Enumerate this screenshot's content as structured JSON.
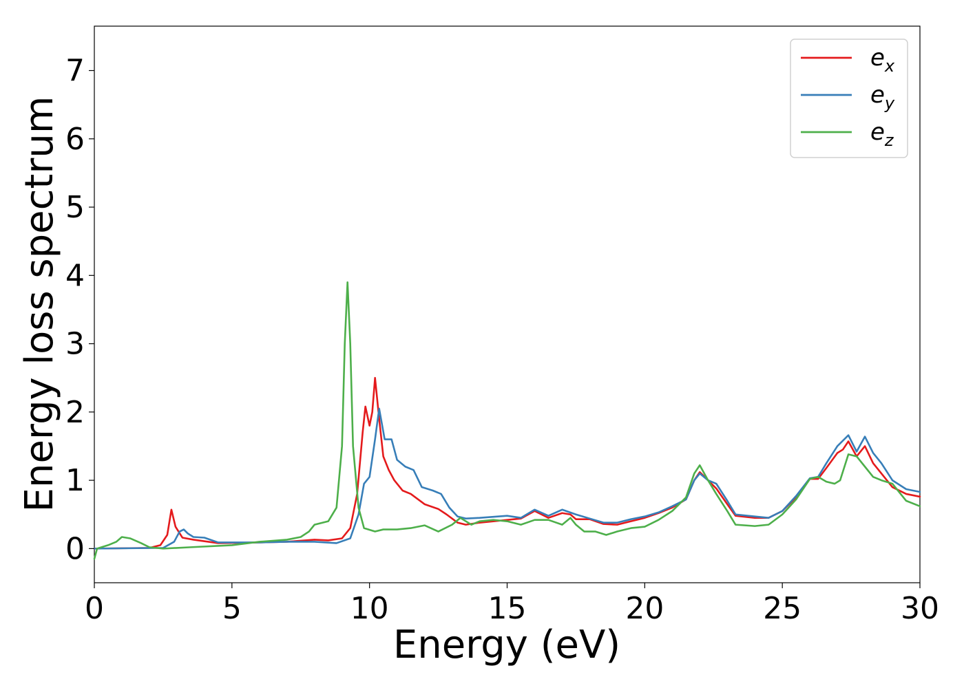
{
  "chart_data": {
    "type": "line",
    "xlabel": "Energy (eV)",
    "ylabel": "Energy loss spectrum",
    "xlim": [
      0,
      30
    ],
    "ylim": [
      -0.5,
      7.65
    ],
    "xticks": [
      0,
      5,
      10,
      15,
      20,
      25,
      30
    ],
    "yticks": [
      0,
      1,
      2,
      3,
      4,
      5,
      6,
      7
    ],
    "xtick_labels": [
      "0",
      "5",
      "10",
      "15",
      "20",
      "25",
      "30"
    ],
    "ytick_labels": [
      "0",
      "1",
      "2",
      "3",
      "4",
      "5",
      "6",
      "7"
    ],
    "grid": false,
    "legend_position": "top-right",
    "series": [
      {
        "name": "e_x",
        "label_main": "e",
        "label_sub": "x",
        "color": "#e41a1c",
        "points": [
          [
            0,
            0
          ],
          [
            1,
            0.005
          ],
          [
            2,
            0.01
          ],
          [
            2.4,
            0.05
          ],
          [
            2.65,
            0.2
          ],
          [
            2.8,
            0.57
          ],
          [
            2.95,
            0.32
          ],
          [
            3.2,
            0.16
          ],
          [
            3.6,
            0.13
          ],
          [
            4.5,
            0.08
          ],
          [
            6,
            0.09
          ],
          [
            7,
            0.1
          ],
          [
            8,
            0.13
          ],
          [
            8.5,
            0.12
          ],
          [
            9,
            0.15
          ],
          [
            9.3,
            0.3
          ],
          [
            9.55,
            0.8
          ],
          [
            9.75,
            1.7
          ],
          [
            9.85,
            2.08
          ],
          [
            10.0,
            1.8
          ],
          [
            10.1,
            2.0
          ],
          [
            10.2,
            2.5
          ],
          [
            10.35,
            1.9
          ],
          [
            10.5,
            1.35
          ],
          [
            10.7,
            1.15
          ],
          [
            10.9,
            1.0
          ],
          [
            11.2,
            0.85
          ],
          [
            11.5,
            0.8
          ],
          [
            12,
            0.65
          ],
          [
            12.5,
            0.58
          ],
          [
            12.8,
            0.5
          ],
          [
            13.2,
            0.38
          ],
          [
            13.5,
            0.35
          ],
          [
            14,
            0.38
          ],
          [
            14.5,
            0.4
          ],
          [
            15,
            0.42
          ],
          [
            15.5,
            0.44
          ],
          [
            16,
            0.55
          ],
          [
            16.5,
            0.45
          ],
          [
            17,
            0.52
          ],
          [
            17.3,
            0.5
          ],
          [
            17.5,
            0.43
          ],
          [
            18,
            0.43
          ],
          [
            18.5,
            0.36
          ],
          [
            19,
            0.35
          ],
          [
            19.5,
            0.4
          ],
          [
            20,
            0.45
          ],
          [
            20.5,
            0.52
          ],
          [
            21,
            0.6
          ],
          [
            21.5,
            0.72
          ],
          [
            21.8,
            1.0
          ],
          [
            22.0,
            1.12
          ],
          [
            22.3,
            1.0
          ],
          [
            22.6,
            0.88
          ],
          [
            23.0,
            0.65
          ],
          [
            23.3,
            0.48
          ],
          [
            24,
            0.45
          ],
          [
            24.5,
            0.45
          ],
          [
            25,
            0.55
          ],
          [
            25.5,
            0.75
          ],
          [
            26,
            1.02
          ],
          [
            26.3,
            1.02
          ],
          [
            26.6,
            1.18
          ],
          [
            27.0,
            1.4
          ],
          [
            27.2,
            1.45
          ],
          [
            27.4,
            1.57
          ],
          [
            27.7,
            1.35
          ],
          [
            28,
            1.5
          ],
          [
            28.3,
            1.25
          ],
          [
            28.6,
            1.1
          ],
          [
            29,
            0.9
          ],
          [
            29.5,
            0.8
          ],
          [
            30,
            0.76
          ]
        ]
      },
      {
        "name": "e_y",
        "label_main": "e",
        "label_sub": "y",
        "color": "#377eb8",
        "points": [
          [
            0,
            0
          ],
          [
            2.5,
            0.01
          ],
          [
            2.9,
            0.1
          ],
          [
            3.1,
            0.25
          ],
          [
            3.25,
            0.28
          ],
          [
            3.4,
            0.22
          ],
          [
            3.6,
            0.17
          ],
          [
            4,
            0.16
          ],
          [
            4.5,
            0.09
          ],
          [
            6,
            0.09
          ],
          [
            7,
            0.1
          ],
          [
            8,
            0.1
          ],
          [
            8.8,
            0.08
          ],
          [
            9.3,
            0.15
          ],
          [
            9.6,
            0.5
          ],
          [
            9.8,
            0.95
          ],
          [
            10.0,
            1.05
          ],
          [
            10.2,
            1.6
          ],
          [
            10.35,
            2.05
          ],
          [
            10.55,
            1.6
          ],
          [
            10.8,
            1.6
          ],
          [
            11.0,
            1.3
          ],
          [
            11.3,
            1.2
          ],
          [
            11.6,
            1.15
          ],
          [
            11.9,
            0.9
          ],
          [
            12.3,
            0.85
          ],
          [
            12.6,
            0.8
          ],
          [
            12.9,
            0.6
          ],
          [
            13.2,
            0.47
          ],
          [
            13.5,
            0.44
          ],
          [
            14,
            0.45
          ],
          [
            15,
            0.48
          ],
          [
            15.5,
            0.45
          ],
          [
            16,
            0.57
          ],
          [
            16.5,
            0.48
          ],
          [
            17,
            0.57
          ],
          [
            17.5,
            0.5
          ],
          [
            18,
            0.44
          ],
          [
            18.5,
            0.38
          ],
          [
            19,
            0.38
          ],
          [
            19.5,
            0.43
          ],
          [
            20,
            0.47
          ],
          [
            20.5,
            0.53
          ],
          [
            21,
            0.62
          ],
          [
            21.5,
            0.72
          ],
          [
            21.8,
            1.0
          ],
          [
            22.0,
            1.1
          ],
          [
            22.3,
            1.0
          ],
          [
            22.6,
            0.95
          ],
          [
            23.0,
            0.7
          ],
          [
            23.3,
            0.5
          ],
          [
            24,
            0.47
          ],
          [
            24.5,
            0.45
          ],
          [
            25,
            0.55
          ],
          [
            25.5,
            0.77
          ],
          [
            26,
            1.03
          ],
          [
            26.3,
            1.05
          ],
          [
            26.6,
            1.25
          ],
          [
            27.0,
            1.5
          ],
          [
            27.4,
            1.66
          ],
          [
            27.7,
            1.42
          ],
          [
            28.0,
            1.64
          ],
          [
            28.3,
            1.4
          ],
          [
            28.6,
            1.25
          ],
          [
            29,
            1.0
          ],
          [
            29.5,
            0.87
          ],
          [
            30,
            0.83
          ]
        ]
      },
      {
        "name": "e_z",
        "label_main": "e",
        "label_sub": "z",
        "color": "#4daf4a",
        "points": [
          [
            0,
            -0.15
          ],
          [
            0.1,
            0.0
          ],
          [
            0.5,
            0.05
          ],
          [
            0.8,
            0.1
          ],
          [
            1.0,
            0.17
          ],
          [
            1.3,
            0.15
          ],
          [
            1.7,
            0.08
          ],
          [
            2,
            0.02
          ],
          [
            2.5,
            0.0
          ],
          [
            3.5,
            0.02
          ],
          [
            5,
            0.05
          ],
          [
            6,
            0.1
          ],
          [
            7,
            0.13
          ],
          [
            7.5,
            0.17
          ],
          [
            7.8,
            0.25
          ],
          [
            8,
            0.35
          ],
          [
            8.5,
            0.4
          ],
          [
            8.8,
            0.6
          ],
          [
            9.0,
            1.5
          ],
          [
            9.1,
            3.0
          ],
          [
            9.2,
            3.9
          ],
          [
            9.3,
            3.0
          ],
          [
            9.4,
            1.5
          ],
          [
            9.6,
            0.6
          ],
          [
            9.8,
            0.3
          ],
          [
            10.2,
            0.25
          ],
          [
            10.5,
            0.28
          ],
          [
            11,
            0.28
          ],
          [
            11.5,
            0.3
          ],
          [
            12,
            0.34
          ],
          [
            12.5,
            0.25
          ],
          [
            13,
            0.35
          ],
          [
            13.3,
            0.45
          ],
          [
            13.7,
            0.35
          ],
          [
            14,
            0.4
          ],
          [
            14.5,
            0.42
          ],
          [
            15,
            0.4
          ],
          [
            15.5,
            0.35
          ],
          [
            16,
            0.42
          ],
          [
            16.5,
            0.42
          ],
          [
            17,
            0.35
          ],
          [
            17.3,
            0.45
          ],
          [
            17.5,
            0.35
          ],
          [
            17.8,
            0.25
          ],
          [
            18.2,
            0.25
          ],
          [
            18.6,
            0.2
          ],
          [
            19,
            0.25
          ],
          [
            19.5,
            0.3
          ],
          [
            20,
            0.32
          ],
          [
            20.5,
            0.42
          ],
          [
            21,
            0.55
          ],
          [
            21.5,
            0.75
          ],
          [
            21.8,
            1.1
          ],
          [
            22.0,
            1.22
          ],
          [
            22.3,
            1.0
          ],
          [
            22.6,
            0.8
          ],
          [
            23.0,
            0.55
          ],
          [
            23.3,
            0.35
          ],
          [
            24,
            0.33
          ],
          [
            24.5,
            0.35
          ],
          [
            25,
            0.5
          ],
          [
            25.5,
            0.72
          ],
          [
            26,
            1.02
          ],
          [
            26.3,
            1.05
          ],
          [
            26.6,
            0.98
          ],
          [
            26.9,
            0.95
          ],
          [
            27.1,
            1.0
          ],
          [
            27.4,
            1.38
          ],
          [
            27.7,
            1.35
          ],
          [
            28.0,
            1.2
          ],
          [
            28.3,
            1.05
          ],
          [
            28.6,
            1.0
          ],
          [
            29,
            0.95
          ],
          [
            29.5,
            0.7
          ],
          [
            30,
            0.62
          ]
        ]
      }
    ]
  }
}
